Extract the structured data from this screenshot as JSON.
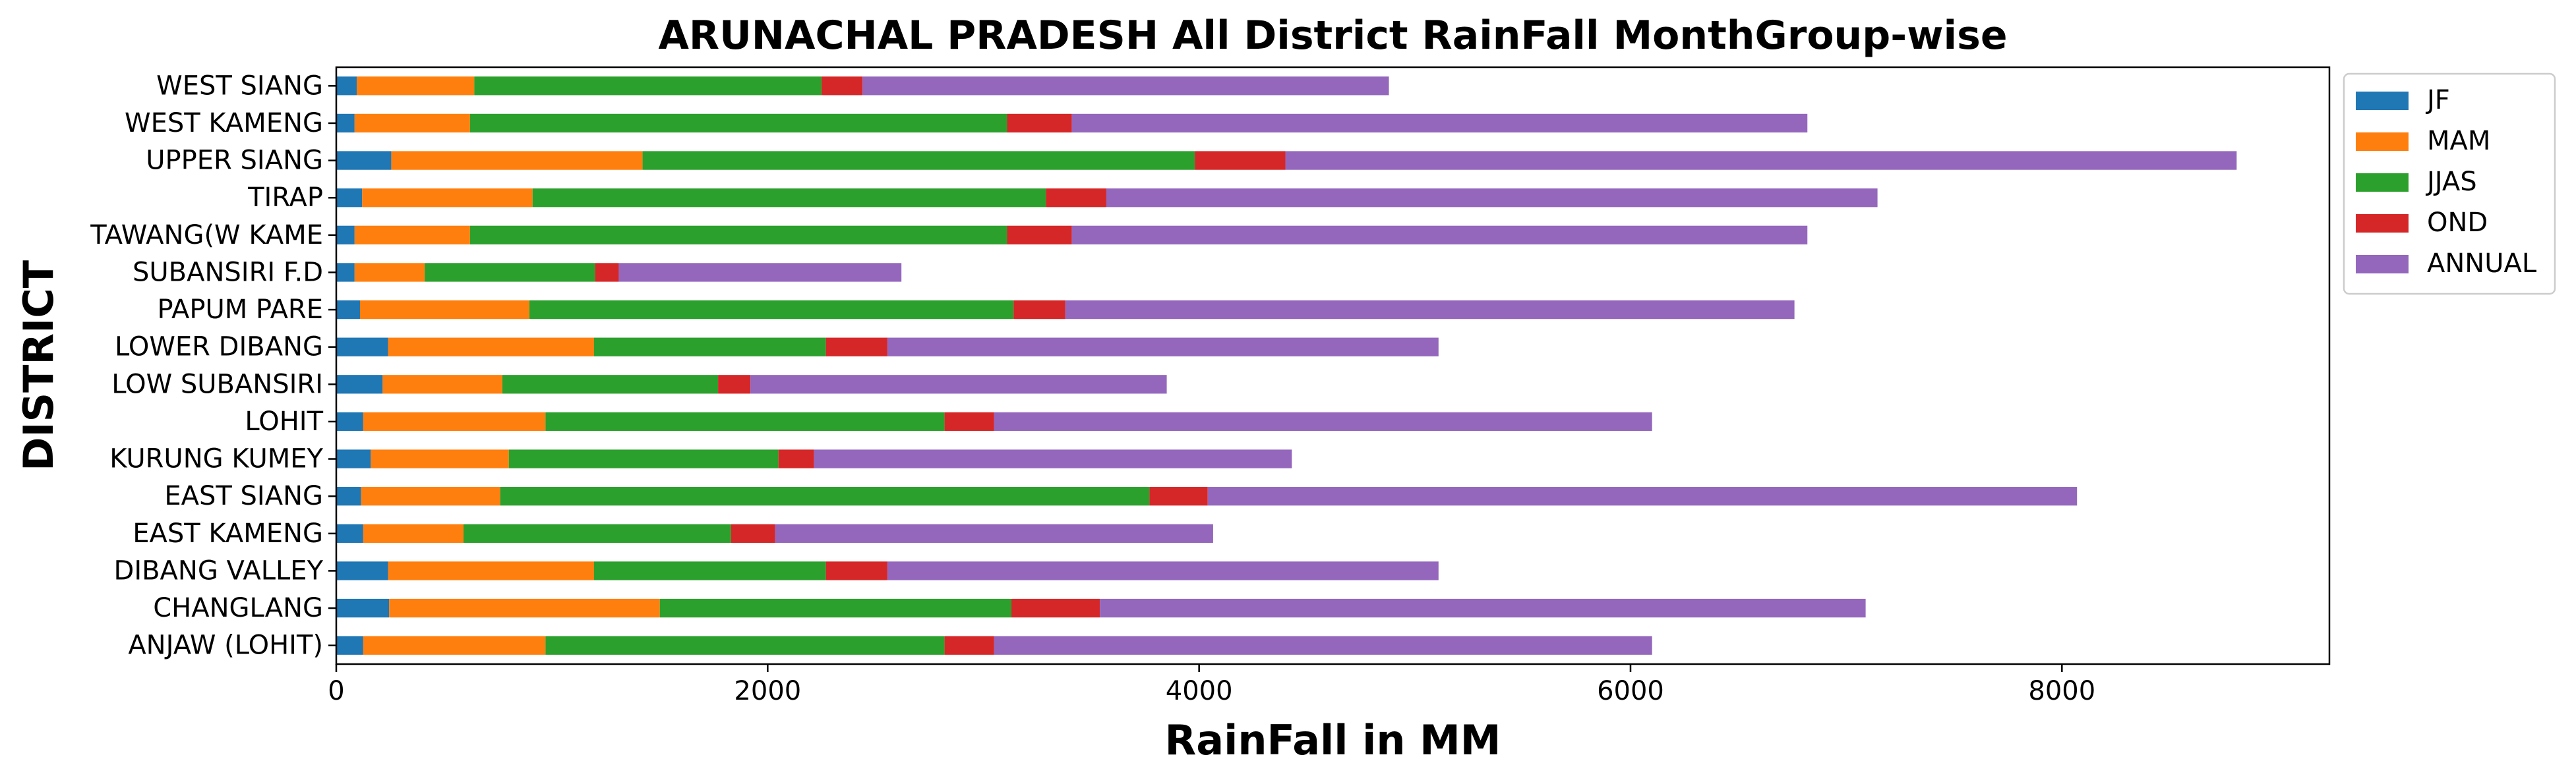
{
  "chart_data": {
    "type": "bar",
    "orientation": "horizontal",
    "stacked": true,
    "title": "ARUNACHAL PRADESH All District RainFall MonthGroup-wise",
    "xlabel": "RainFall in MM",
    "ylabel": "DISTRICT",
    "xlim": [
      0,
      9240
    ],
    "xticks": [
      0,
      2000,
      4000,
      6000,
      8000
    ],
    "xtick_labels": [
      "0",
      "2000",
      "4000",
      "6000",
      "8000"
    ],
    "grid": false,
    "legend_position": "outside-top-right",
    "categories": [
      "ANJAW (LOHIT)",
      "CHANGLANG",
      "DIBANG VALLEY",
      "EAST KAMENG",
      "EAST SIANG",
      "KURUNG KUMEY",
      "LOHIT",
      "LOW SUBANSIRI",
      "LOWER DIBANG",
      "PAPUM PARE",
      "SUBANSIRI F.D",
      "TAWANG(W KAME",
      "TIRAP",
      "UPPER SIANG",
      "WEST KAMENG",
      "WEST SIANG"
    ],
    "series": [
      {
        "name": "JF",
        "color": "#1f77b4",
        "values": [
          125,
          245,
          240,
          125,
          115,
          160,
          125,
          215,
          240,
          110,
          85,
          85,
          120,
          255,
          85,
          95
        ]
      },
      {
        "name": "MAM",
        "color": "#ff7f0e",
        "values": [
          845,
          1255,
          955,
          465,
          645,
          640,
          845,
          555,
          955,
          785,
          325,
          535,
          790,
          1165,
          535,
          545
        ]
      },
      {
        "name": "JJAS",
        "color": "#2ca02c",
        "values": [
          1850,
          1630,
          1075,
          1240,
          3010,
          1250,
          1850,
          1000,
          1075,
          2245,
          790,
          2490,
          2380,
          2560,
          2490,
          1610
        ]
      },
      {
        "name": "OND",
        "color": "#d62728",
        "values": [
          230,
          410,
          285,
          205,
          270,
          165,
          230,
          150,
          285,
          240,
          110,
          300,
          280,
          420,
          300,
          190
        ]
      },
      {
        "name": "ANNUAL",
        "color": "#9467bd",
        "values": [
          3050,
          3550,
          2555,
          2030,
          4030,
          2215,
          3050,
          1930,
          2555,
          3380,
          1310,
          3410,
          3575,
          4410,
          3410,
          2440
        ]
      }
    ]
  }
}
